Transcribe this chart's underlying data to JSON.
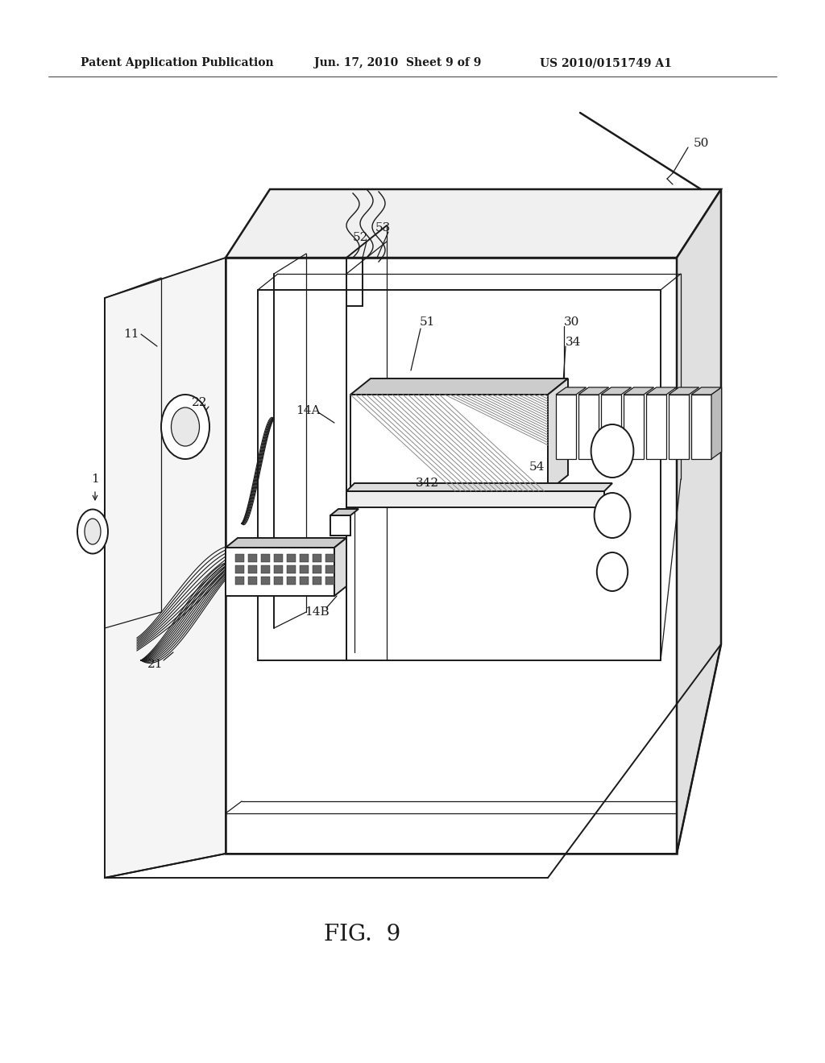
{
  "background_color": "#ffffff",
  "line_color": "#1a1a1a",
  "header_text": "Patent Application Publication",
  "header_date": "Jun. 17, 2010  Sheet 9 of 9",
  "header_patent": "US 2010/0151749 A1",
  "fig_label": "FIG.  9",
  "lw_main": 1.4,
  "lw_thin": 0.9,
  "lw_thick": 1.8
}
